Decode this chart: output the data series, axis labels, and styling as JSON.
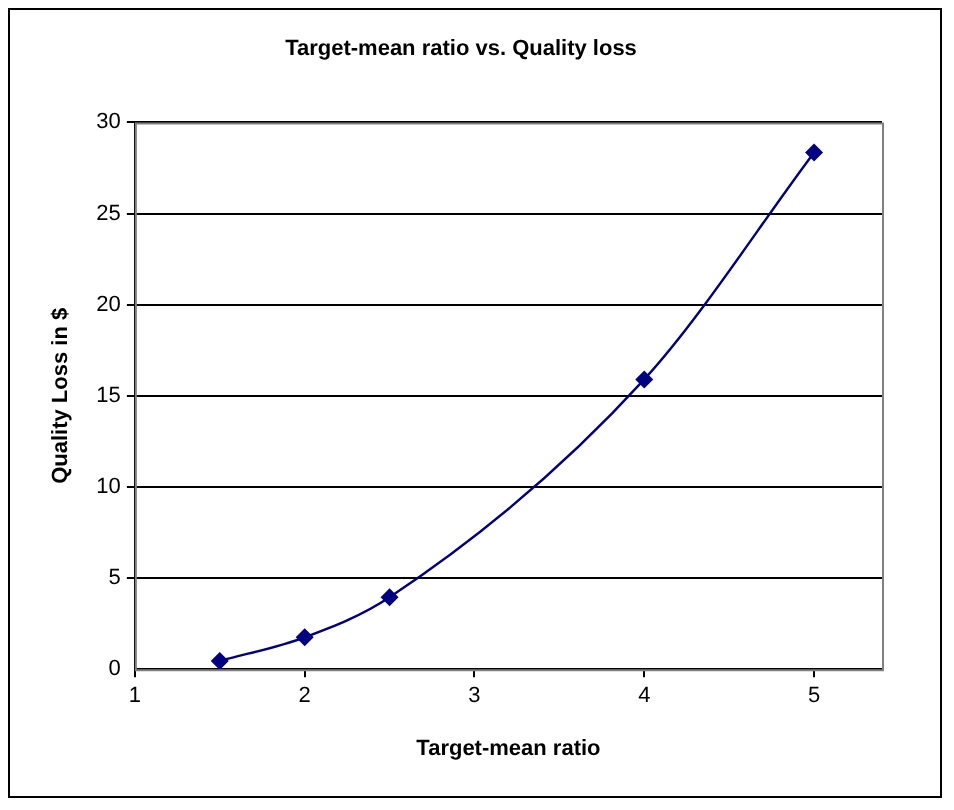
{
  "chart_data": {
    "type": "line",
    "title": "Target-mean ratio vs. Quality loss",
    "xlabel": "Target-mean ratio",
    "ylabel": "Quality Loss in $",
    "x": [
      1.5,
      2,
      2.5,
      4,
      5
    ],
    "series": [
      {
        "color": "#000080",
        "values": [
          0.45,
          1.75,
          3.95,
          15.9,
          28.35
        ]
      }
    ],
    "xlim": [
      1,
      5.4
    ],
    "xticks": [
      1,
      2,
      3,
      4,
      5
    ],
    "ylim": [
      0,
      30
    ],
    "yticks": [
      0,
      5,
      10,
      15,
      20,
      25,
      30
    ],
    "grid": "y",
    "legend": false,
    "marker": "diamond",
    "line_style": "solid"
  }
}
